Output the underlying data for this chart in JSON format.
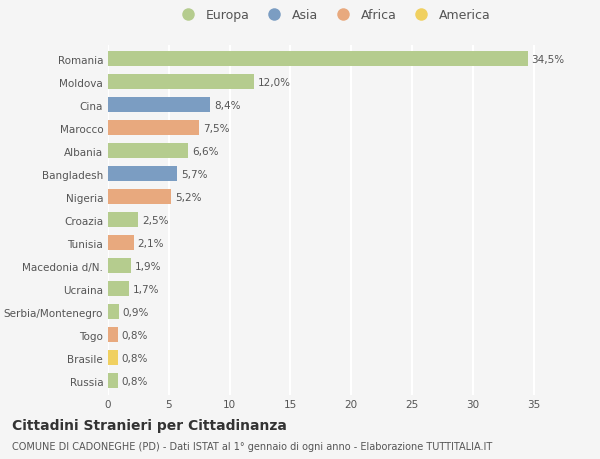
{
  "categories": [
    "Romania",
    "Moldova",
    "Cina",
    "Marocco",
    "Albania",
    "Bangladesh",
    "Nigeria",
    "Croazia",
    "Tunisia",
    "Macedonia d/N.",
    "Ucraina",
    "Serbia/Montenegro",
    "Togo",
    "Brasile",
    "Russia"
  ],
  "values": [
    34.5,
    12.0,
    8.4,
    7.5,
    6.6,
    5.7,
    5.2,
    2.5,
    2.1,
    1.9,
    1.7,
    0.9,
    0.8,
    0.8,
    0.8
  ],
  "labels": [
    "34,5%",
    "12,0%",
    "8,4%",
    "7,5%",
    "6,6%",
    "5,7%",
    "5,2%",
    "2,5%",
    "2,1%",
    "1,9%",
    "1,7%",
    "0,9%",
    "0,8%",
    "0,8%",
    "0,8%"
  ],
  "continents": [
    "Europa",
    "Europa",
    "Asia",
    "Africa",
    "Europa",
    "Asia",
    "Africa",
    "Europa",
    "Africa",
    "Europa",
    "Europa",
    "Europa",
    "Africa",
    "America",
    "Europa"
  ],
  "continent_colors": {
    "Europa": "#b5cc8e",
    "Asia": "#7b9dc2",
    "Africa": "#e8a97e",
    "America": "#f0d060"
  },
  "legend_order": [
    "Europa",
    "Asia",
    "Africa",
    "America"
  ],
  "title": "Cittadini Stranieri per Cittadinanza",
  "subtitle": "COMUNE DI CADONEGHE (PD) - Dati ISTAT al 1° gennaio di ogni anno - Elaborazione TUTTITALIA.IT",
  "xlim": [
    0,
    37
  ],
  "background_color": "#f5f5f5",
  "bar_height": 0.65,
  "grid_color": "#ffffff",
  "label_fontsize": 7.5,
  "tick_fontsize": 7.5,
  "title_fontsize": 10,
  "subtitle_fontsize": 7,
  "legend_fontsize": 9
}
